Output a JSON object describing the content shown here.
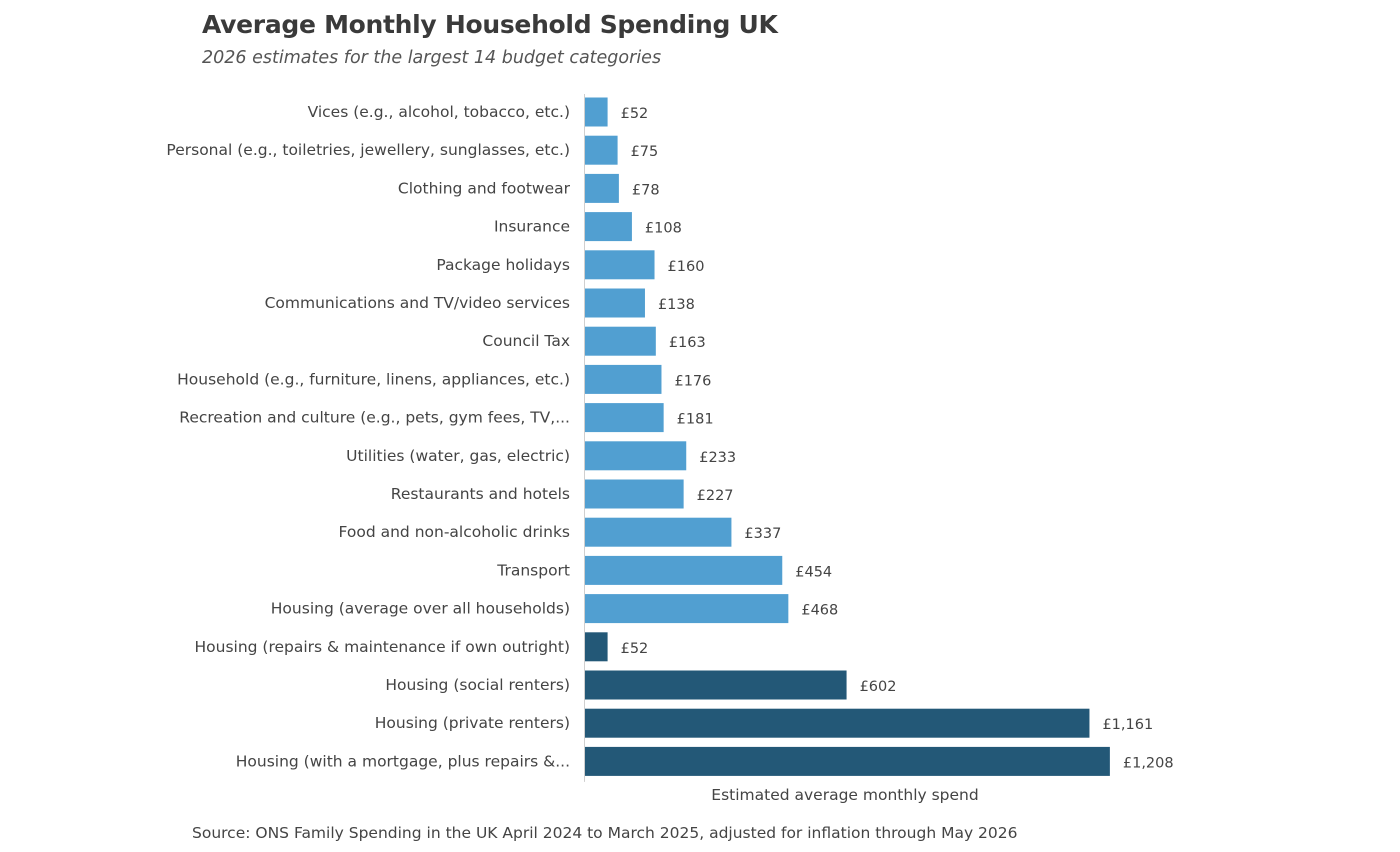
{
  "chart_data": {
    "type": "bar",
    "orientation": "horizontal",
    "title": "Average Monthly Household Spending UK",
    "subtitle": "2026 estimates for the largest 14 budget categories",
    "xlabel": "Estimated average monthly spend",
    "ylabel": "",
    "source": "Source: ONS Family Spending in the UK April 2024 to March 2025, adjusted for inflation through May 2026",
    "xlim": [
      0,
      1300
    ],
    "grid": false,
    "legend": "none",
    "colors": {
      "light": "#519fd1",
      "dark": "#235877",
      "axis": "#cfcfcf"
    },
    "bars": [
      {
        "label": "Vices (e.g., alcohol, tobacco, etc.)",
        "value": 52,
        "value_label": "£52",
        "color": "light"
      },
      {
        "label": "Personal (e.g., toiletries, jewellery, sunglasses, etc.)",
        "value": 75,
        "value_label": "£75",
        "color": "light"
      },
      {
        "label": "Clothing and footwear",
        "value": 78,
        "value_label": "£78",
        "color": "light"
      },
      {
        "label": "Insurance",
        "value": 108,
        "value_label": "£108",
        "color": "light"
      },
      {
        "label": "Package holidays",
        "value": 160,
        "value_label": "£160",
        "color": "light"
      },
      {
        "label": "Communications and TV/video services",
        "value": 138,
        "value_label": "£138",
        "color": "light"
      },
      {
        "label": "Council Tax",
        "value": 163,
        "value_label": "£163",
        "color": "light"
      },
      {
        "label": "Household (e.g., furniture, linens, appliances, etc.)",
        "value": 176,
        "value_label": "£176",
        "color": "light"
      },
      {
        "label": "Recreation and culture (e.g., pets, gym fees, TV,...",
        "value": 181,
        "value_label": "£181",
        "color": "light"
      },
      {
        "label": "Utilities (water, gas, electric)",
        "value": 233,
        "value_label": "£233",
        "color": "light"
      },
      {
        "label": "Restaurants and hotels",
        "value": 227,
        "value_label": "£227",
        "color": "light"
      },
      {
        "label": "Food and non-alcoholic drinks",
        "value": 337,
        "value_label": "£337",
        "color": "light"
      },
      {
        "label": "Transport",
        "value": 454,
        "value_label": "£454",
        "color": "light"
      },
      {
        "label": "Housing (average over all households)",
        "value": 468,
        "value_label": "£468",
        "color": "light"
      },
      {
        "label": "Housing (repairs & maintenance if own outright)",
        "value": 52,
        "value_label": "£52",
        "color": "dark"
      },
      {
        "label": "Housing (social renters)",
        "value": 602,
        "value_label": "£602",
        "color": "dark"
      },
      {
        "label": "Housing (private renters)",
        "value": 1161,
        "value_label": "£1,161",
        "color": "dark"
      },
      {
        "label": "Housing (with a mortgage, plus repairs &...",
        "value": 1208,
        "value_label": "£1,208",
        "color": "dark"
      }
    ]
  }
}
